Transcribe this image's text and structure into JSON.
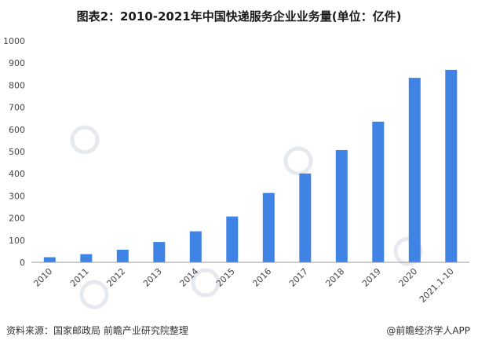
{
  "title": "图表2：2010-2021年中国快递服务企业业务量(单位：亿件)",
  "source": "资料来源：国家邮政局 前瞻产业研究院整理",
  "brand": "@前瞻经济学人APP",
  "colors": {
    "bar": "#3F84E5",
    "axis": "#999999",
    "watermark": "#e6e9ee"
  },
  "chart_data": {
    "type": "bar",
    "title": "图表2：2010-2021年中国快递服务企业业务量(单位：亿件)",
    "categories": [
      "2010",
      "2011",
      "2012",
      "2013",
      "2014",
      "2015",
      "2016",
      "2017",
      "2018",
      "2019",
      "2020",
      "2021.1-10"
    ],
    "values": [
      23,
      37,
      57,
      92,
      140,
      207,
      313,
      401,
      507,
      635,
      833,
      869
    ],
    "ylim": [
      0,
      1000
    ],
    "yticks": [
      0,
      100,
      200,
      300,
      400,
      500,
      600,
      700,
      800,
      900,
      1000
    ],
    "grid": false,
    "legend": "none"
  }
}
